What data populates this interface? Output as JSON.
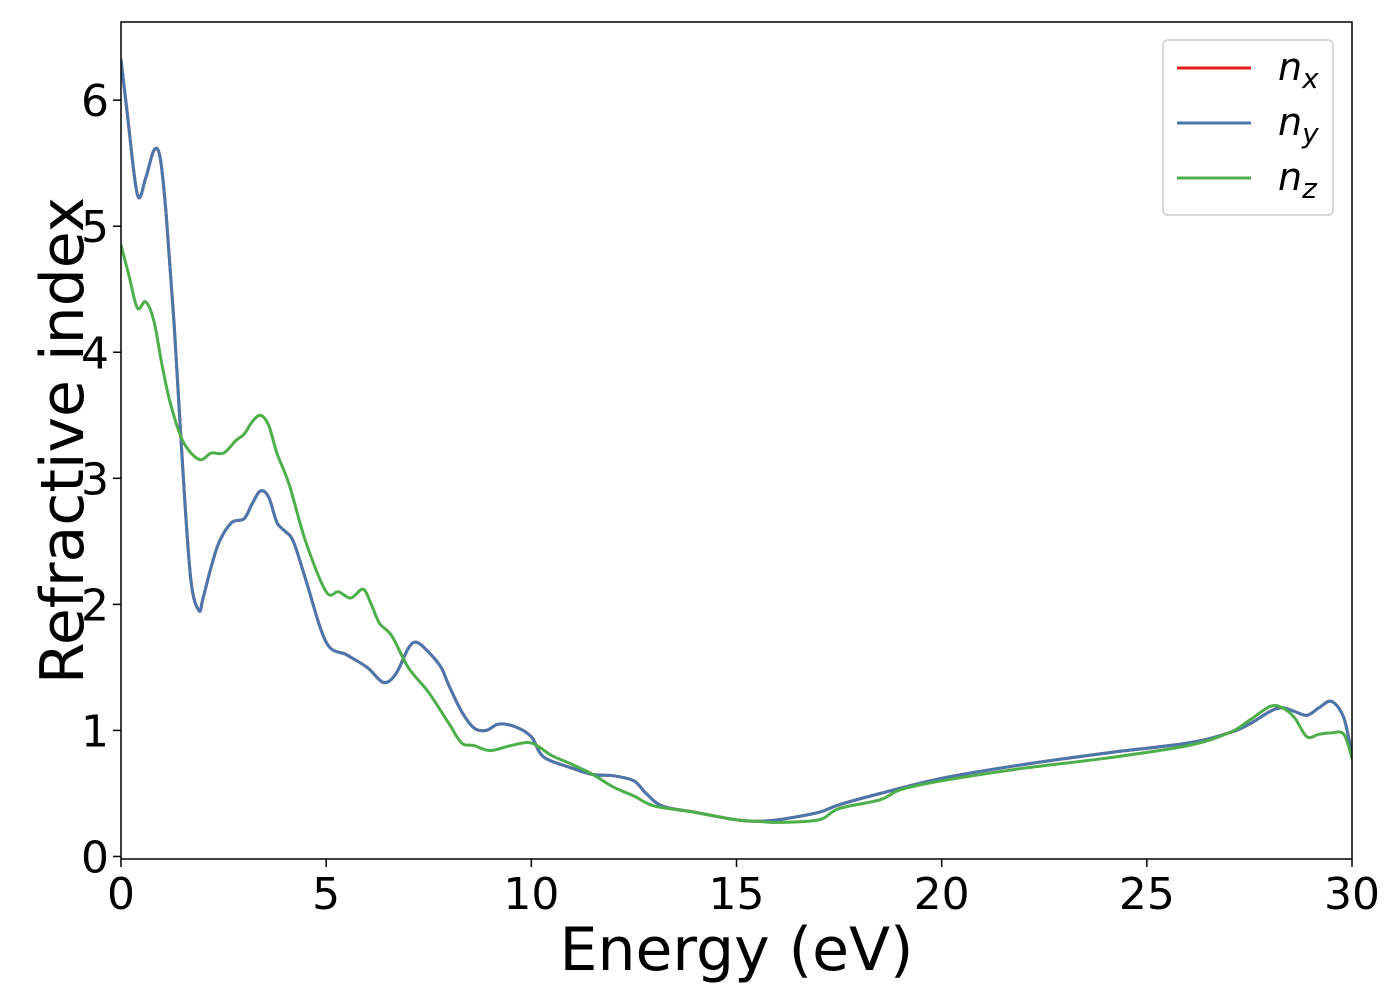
{
  "chart_data": {
    "type": "line",
    "title": "",
    "xlabel": "Energy (eV)",
    "ylabel": "Refractive index",
    "xlim": [
      0,
      30
    ],
    "ylim": [
      -0.02,
      6.62
    ],
    "xticks": [
      0,
      5,
      10,
      15,
      20,
      25,
      30
    ],
    "yticks": [
      0,
      1,
      2,
      3,
      4,
      5,
      6
    ],
    "grid": false,
    "legend_position": "top-right",
    "series": [
      {
        "name": "n",
        "subscript": "x",
        "color": "#e41a1c",
        "x": [
          0,
          0.15,
          0.4,
          0.6,
          0.8,
          0.95,
          1.1,
          1.3,
          1.5,
          1.7,
          1.9,
          2.0,
          2.2,
          2.4,
          2.7,
          3.0,
          3.2,
          3.4,
          3.6,
          3.8,
          4.0,
          4.2,
          4.5,
          5.0,
          5.5,
          6.0,
          6.4,
          6.7,
          7.0,
          7.2,
          7.5,
          7.8,
          8.0,
          8.3,
          8.6,
          8.9,
          9.2,
          9.6,
          10.0,
          10.3,
          11.0,
          11.5,
          12.0,
          12.5,
          12.8,
          13.2,
          14.0,
          15.0,
          15.5,
          16.0,
          17.0,
          17.5,
          18.5,
          20.0,
          22.0,
          24.0,
          26.0,
          27.0,
          27.5,
          28.0,
          28.3,
          28.6,
          28.9,
          29.2,
          29.5,
          29.8,
          30
        ],
        "y": [
          6.32,
          5.9,
          5.25,
          5.38,
          5.6,
          5.55,
          5.1,
          4.2,
          3.1,
          2.2,
          1.95,
          2.05,
          2.3,
          2.5,
          2.65,
          2.68,
          2.8,
          2.9,
          2.85,
          2.65,
          2.58,
          2.5,
          2.2,
          1.7,
          1.6,
          1.5,
          1.38,
          1.45,
          1.65,
          1.7,
          1.62,
          1.5,
          1.35,
          1.15,
          1.02,
          1.0,
          1.05,
          1.03,
          0.95,
          0.79,
          0.7,
          0.65,
          0.64,
          0.6,
          0.5,
          0.4,
          0.35,
          0.29,
          0.28,
          0.29,
          0.35,
          0.41,
          0.5,
          0.62,
          0.73,
          0.82,
          0.9,
          0.98,
          1.05,
          1.15,
          1.18,
          1.15,
          1.12,
          1.18,
          1.23,
          1.1,
          0.8
        ]
      },
      {
        "name": "n",
        "subscript": "y",
        "color": "#4a78ad",
        "x": [
          0,
          0.15,
          0.4,
          0.6,
          0.8,
          0.95,
          1.1,
          1.3,
          1.5,
          1.7,
          1.9,
          2.0,
          2.2,
          2.4,
          2.7,
          3.0,
          3.2,
          3.4,
          3.6,
          3.8,
          4.0,
          4.2,
          4.5,
          5.0,
          5.5,
          6.0,
          6.4,
          6.7,
          7.0,
          7.2,
          7.5,
          7.8,
          8.0,
          8.3,
          8.6,
          8.9,
          9.2,
          9.6,
          10.0,
          10.3,
          11.0,
          11.5,
          12.0,
          12.5,
          12.8,
          13.2,
          14.0,
          15.0,
          15.5,
          16.0,
          17.0,
          17.5,
          18.5,
          20.0,
          22.0,
          24.0,
          26.0,
          27.0,
          27.5,
          28.0,
          28.3,
          28.6,
          28.9,
          29.2,
          29.5,
          29.8,
          30
        ],
        "y": [
          6.32,
          5.9,
          5.25,
          5.38,
          5.6,
          5.55,
          5.1,
          4.2,
          3.1,
          2.2,
          1.95,
          2.05,
          2.3,
          2.5,
          2.65,
          2.68,
          2.8,
          2.9,
          2.85,
          2.65,
          2.58,
          2.5,
          2.2,
          1.7,
          1.6,
          1.5,
          1.38,
          1.45,
          1.65,
          1.7,
          1.62,
          1.5,
          1.35,
          1.15,
          1.02,
          1.0,
          1.05,
          1.03,
          0.95,
          0.79,
          0.7,
          0.65,
          0.64,
          0.6,
          0.5,
          0.4,
          0.35,
          0.29,
          0.28,
          0.29,
          0.35,
          0.41,
          0.5,
          0.62,
          0.73,
          0.82,
          0.9,
          0.98,
          1.05,
          1.15,
          1.18,
          1.15,
          1.12,
          1.18,
          1.23,
          1.1,
          0.8
        ]
      },
      {
        "name": "n",
        "subscript": "z",
        "color": "#4daf4a",
        "x": [
          0,
          0.2,
          0.4,
          0.6,
          0.8,
          1.0,
          1.2,
          1.5,
          1.9,
          2.2,
          2.5,
          2.8,
          3.0,
          3.2,
          3.4,
          3.6,
          3.8,
          4.1,
          4.5,
          5.0,
          5.3,
          5.6,
          5.9,
          6.1,
          6.3,
          6.6,
          7.0,
          7.5,
          8.0,
          8.3,
          8.6,
          9.0,
          9.5,
          10.0,
          10.5,
          11.0,
          11.5,
          12.0,
          12.5,
          13.0,
          14.0,
          15.0,
          15.5,
          16.0,
          17.0,
          17.5,
          18.5,
          19.0,
          20.0,
          22.0,
          24.0,
          26.0,
          27.0,
          27.5,
          28.0,
          28.3,
          28.6,
          28.9,
          29.2,
          29.5,
          29.8,
          30
        ],
        "y": [
          4.85,
          4.6,
          4.35,
          4.4,
          4.25,
          3.9,
          3.6,
          3.3,
          3.15,
          3.2,
          3.2,
          3.3,
          3.35,
          3.45,
          3.5,
          3.42,
          3.2,
          2.95,
          2.5,
          2.1,
          2.1,
          2.05,
          2.12,
          2.0,
          1.85,
          1.75,
          1.5,
          1.3,
          1.05,
          0.9,
          0.88,
          0.84,
          0.88,
          0.9,
          0.8,
          0.73,
          0.65,
          0.55,
          0.48,
          0.4,
          0.35,
          0.29,
          0.28,
          0.27,
          0.29,
          0.38,
          0.45,
          0.53,
          0.6,
          0.7,
          0.78,
          0.88,
          0.98,
          1.08,
          1.19,
          1.18,
          1.1,
          0.95,
          0.97,
          0.98,
          0.97,
          0.78
        ]
      }
    ]
  }
}
